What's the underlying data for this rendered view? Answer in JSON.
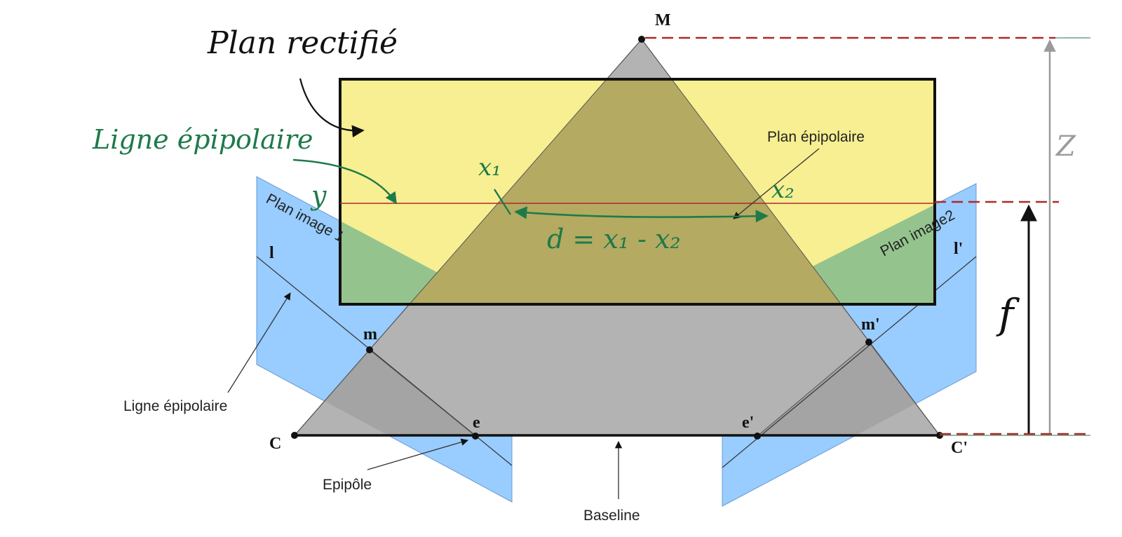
{
  "labels": {
    "point_M": "M",
    "point_m": "m",
    "point_m_prime": "m'",
    "point_C": "C",
    "point_C_prime": "C'",
    "point_e": "e",
    "point_e_prime": "e'",
    "line_l": "l",
    "line_l_prime": "l'",
    "plan_image_1": "Plan image 1",
    "plan_image_2": "Plan image2",
    "plan_epipolaire": "Plan épipolaire",
    "ligne_epipolaire_printed": "Ligne épipolaire",
    "epipole": "Epipôle",
    "baseline": "Baseline"
  },
  "handwritten": {
    "plan_rectifie": "Plan rectifié",
    "ligne_epipolaire": "Ligne épipolaire",
    "y": "y",
    "x1": "x₁",
    "x2": "x₂",
    "disparity": "d = x₁ - x₂",
    "focal": "f",
    "depth": "Z"
  },
  "colors": {
    "image_plane": "#99ccff",
    "rectified_plane": "#f7ef91",
    "overlap_green": "#95c38e",
    "epipolar_triangle": "#b3b3b3",
    "triangle_on_yellow": "#b4aa62",
    "hand_green": "#1e7a4a",
    "dashed_red": "#b0282a",
    "guide_grey": "#9a9a9a"
  }
}
